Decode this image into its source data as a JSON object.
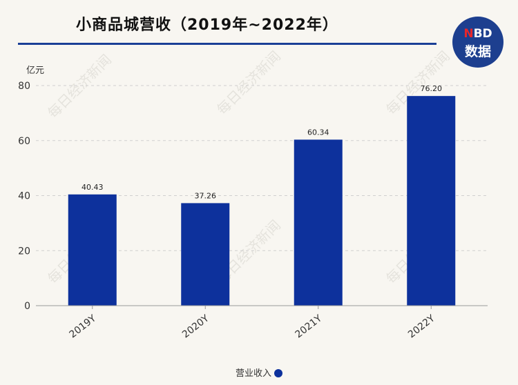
{
  "header": {
    "title": "小商品城营收（2019年~2022年）",
    "logo_line1_accent": "N",
    "logo_line1_rest": "BD",
    "logo_line2": "数据"
  },
  "watermark": "每日经济新闻",
  "colors": {
    "bar": "#0d319c",
    "grid": "#cfcfcf",
    "axis": "#999999",
    "accent_rule": "#1a3f96"
  },
  "chart_data": {
    "type": "bar",
    "categories": [
      "2019Y",
      "2020Y",
      "2021Y",
      "2022Y"
    ],
    "series": [
      {
        "name": "营业收入",
        "values": [
          40.43,
          37.26,
          60.34,
          76.2
        ],
        "labels": [
          "40.43",
          "37.26",
          "60.34",
          "76.20"
        ]
      }
    ],
    "ylabel": "亿元",
    "ylim": [
      0,
      80
    ],
    "yticks": [
      0,
      20,
      40,
      60,
      80
    ],
    "grid": true,
    "legend": "bottom-center"
  }
}
